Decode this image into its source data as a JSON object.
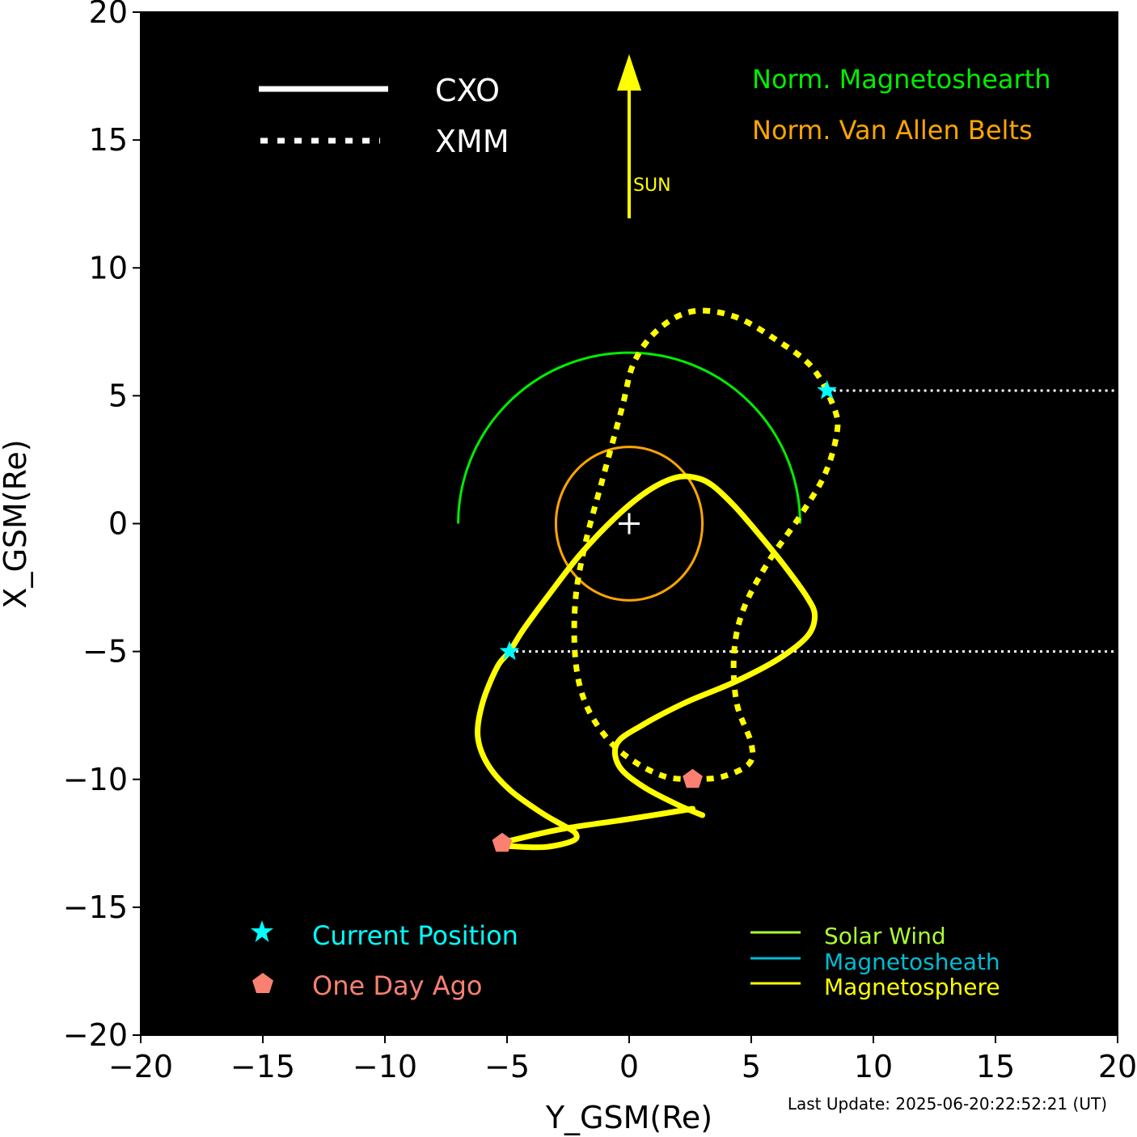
{
  "chart_data": {
    "type": "line",
    "xlabel": "Y_GSM(Re)",
    "ylabel": "X_GSM(Re)",
    "xlim": [
      -20,
      20
    ],
    "ylim": [
      -20,
      20
    ],
    "xticks": [
      -20,
      -15,
      -10,
      -5,
      0,
      5,
      10,
      15,
      20
    ],
    "yticks": [
      -20,
      -15,
      -10,
      -5,
      0,
      5,
      10,
      15,
      20
    ],
    "xtick_labels": [
      "−20",
      "−15",
      "−10",
      "−5",
      "0",
      "5",
      "10",
      "15",
      "20"
    ],
    "ytick_labels": [
      "−20",
      "−15",
      "−10",
      "−5",
      "0",
      "5",
      "10",
      "15",
      "20"
    ],
    "background": "#000000",
    "series": [
      {
        "name": "CXO",
        "style": "solid",
        "color": "#ffff00",
        "points": [
          [
            -5.1,
            -12.6
          ],
          [
            -3.5,
            -12.65
          ],
          [
            -2.3,
            -12.4
          ],
          [
            -2.2,
            -12.1
          ],
          [
            -2.7,
            -11.8
          ],
          [
            -3.6,
            -11.3
          ],
          [
            -4.9,
            -10.4
          ],
          [
            -5.8,
            -9.4
          ],
          [
            -6.2,
            -8.3
          ],
          [
            -6.0,
            -7.0
          ],
          [
            -5.4,
            -5.6
          ],
          [
            -4.9,
            -5.0
          ],
          [
            -4.3,
            -4.1
          ],
          [
            -3.3,
            -2.8
          ],
          [
            -2.0,
            -1.2
          ],
          [
            -0.5,
            0.3
          ],
          [
            0.8,
            1.3
          ],
          [
            1.9,
            1.8
          ],
          [
            2.7,
            1.8
          ],
          [
            3.4,
            1.5
          ],
          [
            4.3,
            0.7
          ],
          [
            5.3,
            -0.4
          ],
          [
            6.4,
            -1.7
          ],
          [
            7.3,
            -2.9
          ],
          [
            7.6,
            -3.6
          ],
          [
            7.3,
            -4.4
          ],
          [
            6.1,
            -5.3
          ],
          [
            4.3,
            -6.2
          ],
          [
            2.3,
            -7.0
          ],
          [
            0.5,
            -7.9
          ],
          [
            -0.5,
            -8.6
          ],
          [
            -0.4,
            -9.5
          ],
          [
            0.6,
            -10.3
          ],
          [
            2.0,
            -11.0
          ],
          [
            3.0,
            -11.4
          ]
        ]
      },
      {
        "name": "CXO-tail",
        "style": "solid",
        "color": "#ffff00",
        "points": [
          [
            -5.1,
            -12.45
          ],
          [
            -2.8,
            -11.95
          ],
          [
            0.0,
            -11.55
          ],
          [
            2.6,
            -11.15
          ]
        ]
      },
      {
        "name": "XMM",
        "style": "dotted",
        "color": "#ffff00",
        "points": [
          [
            2.7,
            -10.0
          ],
          [
            1.5,
            -9.9
          ],
          [
            0.2,
            -9.3
          ],
          [
            -0.9,
            -8.4
          ],
          [
            -1.8,
            -7.0
          ],
          [
            -2.2,
            -5.3
          ],
          [
            -2.2,
            -3.0
          ],
          [
            -1.8,
            -0.8
          ],
          [
            -1.1,
            1.7
          ],
          [
            -0.3,
            4.5
          ],
          [
            0.2,
            6.3
          ],
          [
            1.2,
            7.6
          ],
          [
            2.6,
            8.3
          ],
          [
            4.3,
            8.1
          ],
          [
            6.0,
            7.2
          ],
          [
            7.5,
            6.1
          ],
          [
            8.4,
            4.5
          ],
          [
            8.5,
            3.5
          ],
          [
            8.0,
            1.9
          ],
          [
            7.0,
            0.3
          ],
          [
            5.7,
            -1.5
          ],
          [
            4.7,
            -3.3
          ],
          [
            4.3,
            -5.0
          ],
          [
            4.4,
            -7.0
          ],
          [
            5.0,
            -8.6
          ],
          [
            4.9,
            -9.4
          ],
          [
            3.8,
            -9.9
          ],
          [
            2.7,
            -10.0
          ]
        ]
      }
    ],
    "regions": [
      {
        "name": "Norm. Magnetoshearth",
        "color": "#00ee00",
        "shape": "semicircle",
        "radius": 7
      },
      {
        "name": "Norm. Van Allen Belts",
        "color": "#ffa500",
        "shape": "ellipse",
        "rx": 3,
        "ry": 3
      }
    ],
    "markers": {
      "current_position": [
        [
          -4.9,
          -5.0
        ],
        [
          8.1,
          5.2
        ]
      ],
      "one_day_ago": [
        [
          -5.2,
          -12.5
        ],
        [
          2.6,
          -10.0
        ]
      ],
      "current_color": "#00ffff",
      "one_day_color": "#fa8072",
      "earth": [
        0,
        0
      ]
    },
    "sun_arrow": {
      "from": [
        0,
        12
      ],
      "to": [
        0,
        18.5
      ],
      "label": "SUN",
      "color": "#ffff00"
    },
    "dotted_lines_y": [
      5.2,
      -5.0
    ],
    "legend": {
      "style_entries": [
        {
          "label": "CXO",
          "style": "solid"
        },
        {
          "label": "XMM",
          "style": "dotted"
        }
      ],
      "marker_entries": [
        {
          "label": "Current Position",
          "color": "#00ffff"
        },
        {
          "label": "One Day Ago",
          "color": "#fa8072"
        }
      ],
      "region_entries": [
        {
          "label": "Solar Wind",
          "color": "#adff2f"
        },
        {
          "label": "Magnetosheath",
          "color": "#00bcd4"
        },
        {
          "label": "Magnetosphere",
          "color": "#ffff00"
        }
      ]
    }
  },
  "footer": {
    "last_update": "Last Update: 2025-06-20:22:52:21 (UT)"
  }
}
